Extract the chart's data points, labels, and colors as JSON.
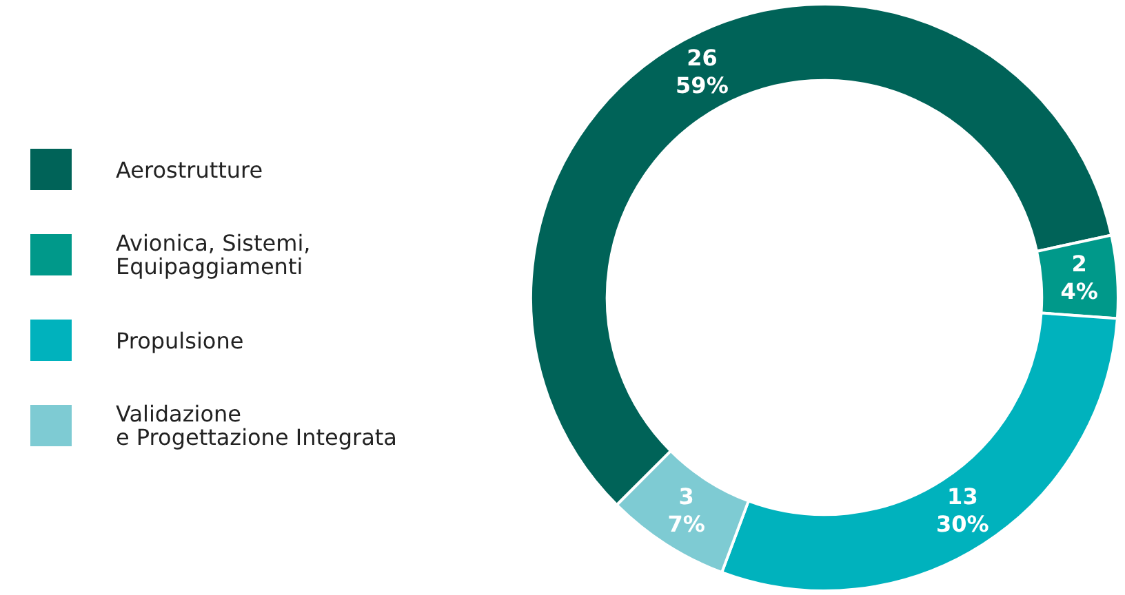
{
  "chart_data": {
    "type": "donut",
    "categories": [
      "Aerostrutture",
      "Avionica, Sistemi,\nEquipaggiamenti",
      "Propulsione",
      "Validazione\ne Progettazione Integrata"
    ],
    "values": [
      26,
      2,
      13,
      3
    ],
    "colors": [
      "#006358",
      "#00998a",
      "#00b2bd",
      "#7ecbd3"
    ],
    "value_labels": [
      "26\n59%",
      "2\n4%",
      "13\n30%",
      "3\n7%"
    ],
    "legend": "left"
  }
}
